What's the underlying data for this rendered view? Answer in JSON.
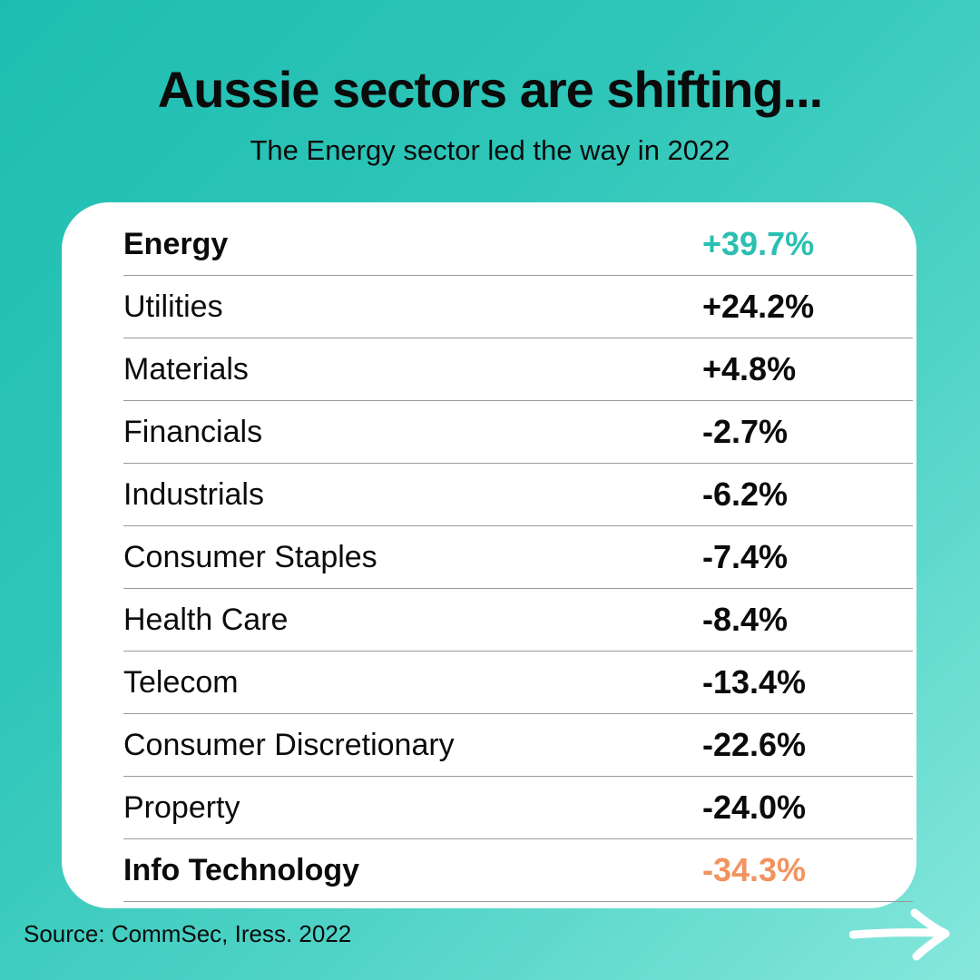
{
  "header": {
    "title": "Aussie sectors are shifting...",
    "subtitle": "The Energy sector led the way in 2022"
  },
  "colors": {
    "positive_highlight": "#2bbfb2",
    "negative_highlight": "#f2935f",
    "default_value": "#0b0b0b",
    "background": "#2ec6b9"
  },
  "chart_data": {
    "type": "table",
    "title": "Aussie sectors are shifting...",
    "subtitle": "The Energy sector led the way in 2022",
    "rows": [
      {
        "sector": "Energy",
        "value": 39.7,
        "display": "+39.7%",
        "highlight": "positive",
        "bold": true
      },
      {
        "sector": "Utilities",
        "value": 24.2,
        "display": "+24.2%",
        "highlight": "none",
        "bold": false
      },
      {
        "sector": "Materials",
        "value": 4.8,
        "display": "+4.8%",
        "highlight": "none",
        "bold": false
      },
      {
        "sector": "Financials",
        "value": -2.7,
        "display": "-2.7%",
        "highlight": "none",
        "bold": false
      },
      {
        "sector": "Industrials",
        "value": -6.2,
        "display": "-6.2%",
        "highlight": "none",
        "bold": false
      },
      {
        "sector": "Consumer Staples",
        "value": -7.4,
        "display": "-7.4%",
        "highlight": "none",
        "bold": false
      },
      {
        "sector": "Health Care",
        "value": -8.4,
        "display": "-8.4%",
        "highlight": "none",
        "bold": false
      },
      {
        "sector": "Telecom",
        "value": -13.4,
        "display": "-13.4%",
        "highlight": "none",
        "bold": false
      },
      {
        "sector": "Consumer Discretionary",
        "value": -22.6,
        "display": "-22.6%",
        "highlight": "none",
        "bold": false
      },
      {
        "sector": "Property",
        "value": -24.0,
        "display": "-24.0%",
        "highlight": "none",
        "bold": false
      },
      {
        "sector": "Info Technology",
        "value": -34.3,
        "display": "-34.3%",
        "highlight": "negative",
        "bold": true
      }
    ]
  },
  "footer": {
    "source": "Source: CommSec, Iress. 2022",
    "icon": "arrow-right-icon"
  }
}
